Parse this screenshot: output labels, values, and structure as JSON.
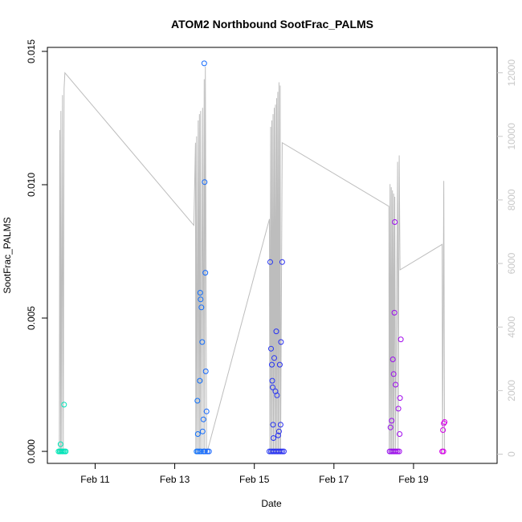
{
  "chart_data": {
    "type": "scatter",
    "title": "ATOM2 Northbound SootFrac_PALMS",
    "xlabel": "Date",
    "ylabel": "SootFrac_PALMS",
    "x_unit": "day of February",
    "xlim": [
      9.8,
      21.1
    ],
    "ylim": [
      -0.00045,
      0.01515
    ],
    "y2lim": [
      -290,
      12800
    ],
    "x_ticks": [
      {
        "value": 11,
        "label": "Feb 11"
      },
      {
        "value": 13,
        "label": "Feb 13"
      },
      {
        "value": 15,
        "label": "Feb 15"
      },
      {
        "value": 17,
        "label": "Feb 17"
      },
      {
        "value": 19,
        "label": "Feb 19"
      }
    ],
    "y_ticks": [
      {
        "value": 0.0,
        "label": "0.000"
      },
      {
        "value": 0.005,
        "label": "0.005"
      },
      {
        "value": 0.01,
        "label": "0.010"
      },
      {
        "value": 0.015,
        "label": "0.015"
      }
    ],
    "y2_ticks": [
      {
        "value": 0,
        "label": "0"
      },
      {
        "value": 2000,
        "label": "2000"
      },
      {
        "value": 4000,
        "label": "4000"
      },
      {
        "value": 6000,
        "label": "6000"
      },
      {
        "value": 8000,
        "label": "8000"
      },
      {
        "value": 10000,
        "label": "10000"
      },
      {
        "value": 12000,
        "label": "12000"
      }
    ],
    "grid": false,
    "legend": "none",
    "colors": {
      "altitude_line": "#bdbdbd",
      "point_gradient": [
        "#00e8b4",
        "#00c6e0",
        "#1460ff",
        "#2a28f0",
        "#7a10f0",
        "#d800e8"
      ]
    },
    "series": [
      {
        "role": "soot_fraction_points",
        "points": [
          {
            "x": 10.13,
            "y": 0.00027
          },
          {
            "x": 10.08,
            "y": 0.0
          },
          {
            "x": 10.11,
            "y": 0.0
          },
          {
            "x": 10.14,
            "y": 0.0
          },
          {
            "x": 10.17,
            "y": 0.0
          },
          {
            "x": 10.2,
            "y": 0.0
          },
          {
            "x": 10.23,
            "y": 0.0
          },
          {
            "x": 10.26,
            "y": 0.0
          },
          {
            "x": 10.22,
            "y": 0.00175
          },
          {
            "x": 13.55,
            "y": 0.0
          },
          {
            "x": 13.58,
            "y": 0.0
          },
          {
            "x": 13.62,
            "y": 0.0
          },
          {
            "x": 13.66,
            "y": 0.0
          },
          {
            "x": 13.72,
            "y": 0.0
          },
          {
            "x": 13.76,
            "y": 0.0
          },
          {
            "x": 13.82,
            "y": 0.0
          },
          {
            "x": 13.86,
            "y": 0.0
          },
          {
            "x": 13.57,
            "y": 0.0019
          },
          {
            "x": 13.58,
            "y": 0.00065
          },
          {
            "x": 13.63,
            "y": 0.00265
          },
          {
            "x": 13.64,
            "y": 0.00595
          },
          {
            "x": 13.65,
            "y": 0.0057
          },
          {
            "x": 13.67,
            "y": 0.0054
          },
          {
            "x": 13.69,
            "y": 0.0041
          },
          {
            "x": 13.7,
            "y": 0.00075
          },
          {
            "x": 13.72,
            "y": 0.0012
          },
          {
            "x": 13.74,
            "y": 0.01455
          },
          {
            "x": 13.75,
            "y": 0.0101
          },
          {
            "x": 13.77,
            "y": 0.0067
          },
          {
            "x": 13.78,
            "y": 0.003
          },
          {
            "x": 13.8,
            "y": 0.0015
          },
          {
            "x": 15.38,
            "y": 0.0
          },
          {
            "x": 15.42,
            "y": 0.0
          },
          {
            "x": 15.46,
            "y": 0.0
          },
          {
            "x": 15.5,
            "y": 0.0
          },
          {
            "x": 15.54,
            "y": 0.0
          },
          {
            "x": 15.58,
            "y": 0.0
          },
          {
            "x": 15.62,
            "y": 0.0
          },
          {
            "x": 15.66,
            "y": 0.0
          },
          {
            "x": 15.7,
            "y": 0.0
          },
          {
            "x": 15.74,
            "y": 0.0
          },
          {
            "x": 15.4,
            "y": 0.0071
          },
          {
            "x": 15.42,
            "y": 0.00385
          },
          {
            "x": 15.44,
            "y": 0.00325
          },
          {
            "x": 15.45,
            "y": 0.00265
          },
          {
            "x": 15.46,
            "y": 0.0024
          },
          {
            "x": 15.47,
            "y": 0.001
          },
          {
            "x": 15.48,
            "y": 0.0005
          },
          {
            "x": 15.5,
            "y": 0.0035
          },
          {
            "x": 15.53,
            "y": 0.00225
          },
          {
            "x": 15.55,
            "y": 0.0045
          },
          {
            "x": 15.57,
            "y": 0.0021
          },
          {
            "x": 15.6,
            "y": 0.0006
          },
          {
            "x": 15.62,
            "y": 0.00075
          },
          {
            "x": 15.64,
            "y": 0.00325
          },
          {
            "x": 15.66,
            "y": 0.001
          },
          {
            "x": 15.67,
            "y": 0.0041
          },
          {
            "x": 15.7,
            "y": 0.0071
          },
          {
            "x": 18.4,
            "y": 0.0
          },
          {
            "x": 18.44,
            "y": 0.0
          },
          {
            "x": 18.48,
            "y": 0.0
          },
          {
            "x": 18.52,
            "y": 0.0
          },
          {
            "x": 18.56,
            "y": 0.0
          },
          {
            "x": 18.6,
            "y": 0.0
          },
          {
            "x": 18.64,
            "y": 0.0
          },
          {
            "x": 18.42,
            "y": 0.0009
          },
          {
            "x": 18.45,
            "y": 0.00115
          },
          {
            "x": 18.48,
            "y": 0.00345
          },
          {
            "x": 18.5,
            "y": 0.0029
          },
          {
            "x": 18.52,
            "y": 0.0052
          },
          {
            "x": 18.53,
            "y": 0.0086
          },
          {
            "x": 18.55,
            "y": 0.0025
          },
          {
            "x": 18.62,
            "y": 0.0016
          },
          {
            "x": 18.65,
            "y": 0.00065
          },
          {
            "x": 18.66,
            "y": 0.002
          },
          {
            "x": 18.68,
            "y": 0.0042
          },
          {
            "x": 19.72,
            "y": 0.0
          },
          {
            "x": 19.75,
            "y": 0.0
          },
          {
            "x": 19.74,
            "y": 0.0008
          },
          {
            "x": 19.76,
            "y": 0.00105
          },
          {
            "x": 19.78,
            "y": 0.0011
          }
        ]
      },
      {
        "role": "altitude_trace",
        "axis": "right",
        "points": [
          {
            "x": 10.1,
            "y": 0
          },
          {
            "x": 10.11,
            "y": 10200
          },
          {
            "x": 10.13,
            "y": 0
          },
          {
            "x": 10.14,
            "y": 10800
          },
          {
            "x": 10.16,
            "y": 0
          },
          {
            "x": 10.18,
            "y": 11300
          },
          {
            "x": 10.2,
            "y": 0
          },
          {
            "x": 10.22,
            "y": 11500
          },
          {
            "x": 10.24,
            "y": 12000
          },
          {
            "x": 13.48,
            "y": 7200
          },
          {
            "x": 13.52,
            "y": 9800
          },
          {
            "x": 13.53,
            "y": 0
          },
          {
            "x": 13.55,
            "y": 10000
          },
          {
            "x": 13.56,
            "y": 0
          },
          {
            "x": 13.59,
            "y": 10500
          },
          {
            "x": 13.6,
            "y": 0
          },
          {
            "x": 13.62,
            "y": 10700
          },
          {
            "x": 13.63,
            "y": 0
          },
          {
            "x": 13.65,
            "y": 10800
          },
          {
            "x": 13.66,
            "y": 0
          },
          {
            "x": 13.7,
            "y": 10900
          },
          {
            "x": 13.71,
            "y": 0
          },
          {
            "x": 13.74,
            "y": 11800
          },
          {
            "x": 13.75,
            "y": 0
          },
          {
            "x": 13.77,
            "y": 12200
          },
          {
            "x": 13.8,
            "y": 0
          },
          {
            "x": 15.38,
            "y": 7400
          },
          {
            "x": 15.39,
            "y": 0
          },
          {
            "x": 15.41,
            "y": 10300
          },
          {
            "x": 15.42,
            "y": 0
          },
          {
            "x": 15.44,
            "y": 10500
          },
          {
            "x": 15.45,
            "y": 0
          },
          {
            "x": 15.47,
            "y": 10700
          },
          {
            "x": 15.48,
            "y": 0
          },
          {
            "x": 15.5,
            "y": 10900
          },
          {
            "x": 15.51,
            "y": 0
          },
          {
            "x": 15.53,
            "y": 11000
          },
          {
            "x": 15.54,
            "y": 0
          },
          {
            "x": 15.56,
            "y": 11200
          },
          {
            "x": 15.57,
            "y": 0
          },
          {
            "x": 15.59,
            "y": 11400
          },
          {
            "x": 15.6,
            "y": 0
          },
          {
            "x": 15.62,
            "y": 11700
          },
          {
            "x": 15.63,
            "y": 0
          },
          {
            "x": 15.65,
            "y": 11600
          },
          {
            "x": 15.66,
            "y": 0
          },
          {
            "x": 15.7,
            "y": 9800
          },
          {
            "x": 18.38,
            "y": 7800
          },
          {
            "x": 18.39,
            "y": 0
          },
          {
            "x": 18.41,
            "y": 8500
          },
          {
            "x": 18.42,
            "y": 0
          },
          {
            "x": 18.44,
            "y": 8400
          },
          {
            "x": 18.45,
            "y": 0
          },
          {
            "x": 18.47,
            "y": 8300
          },
          {
            "x": 18.48,
            "y": 0
          },
          {
            "x": 18.5,
            "y": 8200
          },
          {
            "x": 18.51,
            "y": 0
          },
          {
            "x": 18.53,
            "y": 8100
          },
          {
            "x": 18.55,
            "y": 0
          },
          {
            "x": 18.6,
            "y": 9200
          },
          {
            "x": 18.61,
            "y": 0
          },
          {
            "x": 18.64,
            "y": 9400
          },
          {
            "x": 18.66,
            "y": 5800
          },
          {
            "x": 19.72,
            "y": 6600
          },
          {
            "x": 19.73,
            "y": 0
          },
          {
            "x": 19.76,
            "y": 8600
          },
          {
            "x": 19.78,
            "y": 0
          }
        ]
      }
    ]
  }
}
